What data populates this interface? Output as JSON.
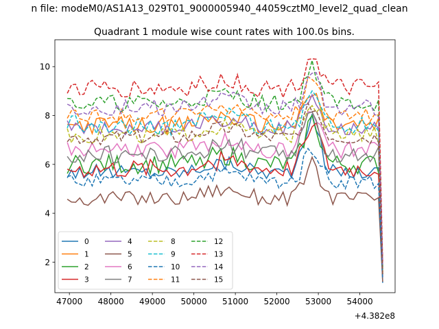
{
  "figure": {
    "suptitle": "n file: modeM0/AS1A13_029T01_9000005940_44059cztM0_level2_quad_clean",
    "title": "Quadrant 1 module wise count rates with 100.0s bins.",
    "x_offset_label": "+4.382e8"
  },
  "chart_data": {
    "type": "line",
    "title": "Quadrant 1 module wise count rates with 100.0s bins.",
    "x_offset": 438200000,
    "xlim": [
      46650,
      54850
    ],
    "ylim": [
      0.75,
      11.1
    ],
    "x_ticks": [
      47000,
      48000,
      49000,
      50000,
      51000,
      52000,
      53000,
      54000
    ],
    "y_ticks": [
      2,
      4,
      6,
      8,
      10
    ],
    "grid": false,
    "legend_position": "lower-left",
    "x_start": 46950,
    "x_step": 100,
    "x_end": 54600,
    "series": [
      {
        "name": "0",
        "color": "#1f77b4",
        "dashed": false,
        "base": 5.7,
        "amp": 0.3,
        "peak": 2.1,
        "end": 1.15
      },
      {
        "name": "1",
        "color": "#ff7f0e",
        "dashed": false,
        "base": 7.6,
        "amp": 0.35,
        "peak": 1.3,
        "end": 1.6
      },
      {
        "name": "2",
        "color": "#2ca02c",
        "dashed": false,
        "base": 6.0,
        "amp": 0.4,
        "peak": 1.8,
        "end": 1.5
      },
      {
        "name": "3",
        "color": "#d62728",
        "dashed": false,
        "base": 5.8,
        "amp": 0.4,
        "peak": 2.0,
        "end": 1.4
      },
      {
        "name": "4",
        "color": "#9467bd",
        "dashed": false,
        "base": 7.5,
        "amp": 0.3,
        "peak": 1.3,
        "end": 1.7
      },
      {
        "name": "5",
        "color": "#8c564b",
        "dashed": false,
        "base": 4.6,
        "amp": 0.3,
        "peak": 1.4,
        "end": 1.2
      },
      {
        "name": "6",
        "color": "#e377c2",
        "dashed": false,
        "base": 6.6,
        "amp": 0.35,
        "peak": 1.6,
        "end": 1.4
      },
      {
        "name": "7",
        "color": "#7f7f7f",
        "dashed": false,
        "base": 6.4,
        "amp": 0.4,
        "peak": 1.5,
        "end": 1.5
      },
      {
        "name": "8",
        "color": "#bcbd22",
        "dashed": true,
        "base": 7.2,
        "amp": 0.35,
        "peak": 1.4,
        "end": 1.6
      },
      {
        "name": "9",
        "color": "#17becf",
        "dashed": true,
        "base": 7.6,
        "amp": 0.4,
        "peak": 1.3,
        "end": 1.7
      },
      {
        "name": "10",
        "color": "#1f77b4",
        "dashed": true,
        "base": 5.3,
        "amp": 0.3,
        "peak": 1.4,
        "end": 1.3
      },
      {
        "name": "11",
        "color": "#ff7f0e",
        "dashed": true,
        "base": 8.0,
        "amp": 0.3,
        "peak": 1.5,
        "end": 1.6
      },
      {
        "name": "12",
        "color": "#2ca02c",
        "dashed": true,
        "base": 8.5,
        "amp": 0.35,
        "peak": 1.5,
        "end": 1.8
      },
      {
        "name": "13",
        "color": "#d62728",
        "dashed": true,
        "base": 9.1,
        "amp": 0.4,
        "peak": 1.4,
        "end": 2.0
      },
      {
        "name": "14",
        "color": "#9467bd",
        "dashed": true,
        "base": 8.3,
        "amp": 0.35,
        "peak": 1.3,
        "end": 1.9
      },
      {
        "name": "15",
        "color": "#8c564b",
        "dashed": true,
        "base": 7.1,
        "amp": 0.3,
        "peak": 1.3,
        "end": 1.5
      }
    ]
  }
}
